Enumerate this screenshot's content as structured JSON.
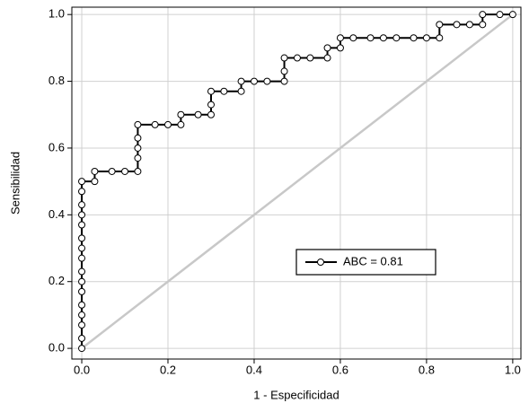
{
  "chart_data": {
    "type": "line",
    "x_label": "1 - Especificidad",
    "y_label": "Sensibilidad",
    "xlim": [
      -0.023,
      1.019
    ],
    "ylim": [
      -0.032,
      1.022
    ],
    "xticks": [
      {
        "value": 0,
        "label": "0.0"
      },
      0.2,
      0.4,
      0.6,
      0.8,
      {
        "value": 1,
        "label": "1.0"
      }
    ],
    "yticks": [
      {
        "value": 0,
        "label": "0.0"
      },
      0.2,
      0.4,
      0.6,
      0.8,
      {
        "value": 1,
        "label": "1.0"
      }
    ],
    "grid": true,
    "series": [
      {
        "name": "ABC = 0.81",
        "color": "#000000",
        "x": [
          0,
          0,
          0,
          0,
          0,
          0,
          0,
          0,
          0,
          0,
          0,
          0,
          0,
          0,
          0,
          0,
          0.03,
          0.03,
          0.07,
          0.1,
          0.13,
          0.13,
          0.13,
          0.13,
          0.13,
          0.17,
          0.2,
          0.23,
          0.23,
          0.27,
          0.3,
          0.3,
          0.3,
          0.33,
          0.37,
          0.37,
          0.4,
          0.43,
          0.47,
          0.47,
          0.47,
          0.5,
          0.53,
          0.57,
          0.57,
          0.6,
          0.6,
          0.63,
          0.67,
          0.7,
          0.73,
          0.77,
          0.8,
          0.83,
          0.83,
          0.87,
          0.9,
          0.93,
          0.93,
          0.97,
          1
        ],
        "values": [
          0,
          0.03,
          0.07,
          0.1,
          0.13,
          0.17,
          0.2,
          0.23,
          0.27,
          0.3,
          0.33,
          0.37,
          0.4,
          0.43,
          0.47,
          0.5,
          0.5,
          0.53,
          0.53,
          0.53,
          0.53,
          0.57,
          0.6,
          0.63,
          0.67,
          0.67,
          0.67,
          0.67,
          0.7,
          0.7,
          0.7,
          0.73,
          0.77,
          0.77,
          0.77,
          0.8,
          0.8,
          0.8,
          0.8,
          0.83,
          0.87,
          0.87,
          0.87,
          0.87,
          0.9,
          0.9,
          0.93,
          0.93,
          0.93,
          0.93,
          0.93,
          0.93,
          0.93,
          0.93,
          0.97,
          0.97,
          0.97,
          0.97,
          1,
          1,
          1
        ]
      }
    ],
    "reference_line": {
      "x": [
        0,
        1
      ],
      "values": [
        0,
        1
      ],
      "color": "#c8c8c8"
    }
  }
}
